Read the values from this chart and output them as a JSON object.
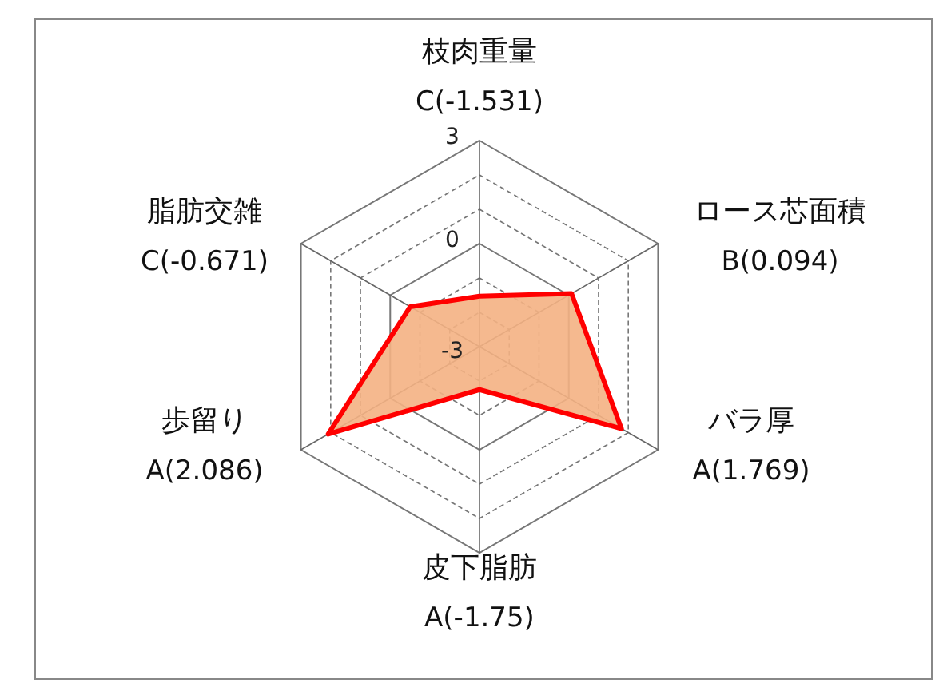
{
  "chart_data": {
    "type": "radar",
    "categories": [
      "枝肉重量",
      "ロース芯面積",
      "バラ厚",
      "皮下脂肪",
      "歩留り",
      "脂肪交雑"
    ],
    "series": [
      {
        "color": "#ff0000",
        "values": [
          -1.531,
          0.094,
          1.769,
          -1.75,
          2.086,
          -0.671
        ]
      }
    ],
    "annotations": [
      "C(-1.531)",
      "B(0.094)",
      "A(1.769)",
      "A(-1.75)",
      "A(2.086)",
      "C(-0.671)"
    ],
    "ylim": [
      -3,
      3
    ],
    "yticks": [
      -3,
      0,
      3
    ],
    "grid": true,
    "marker": "none",
    "line_style": "solid"
  }
}
